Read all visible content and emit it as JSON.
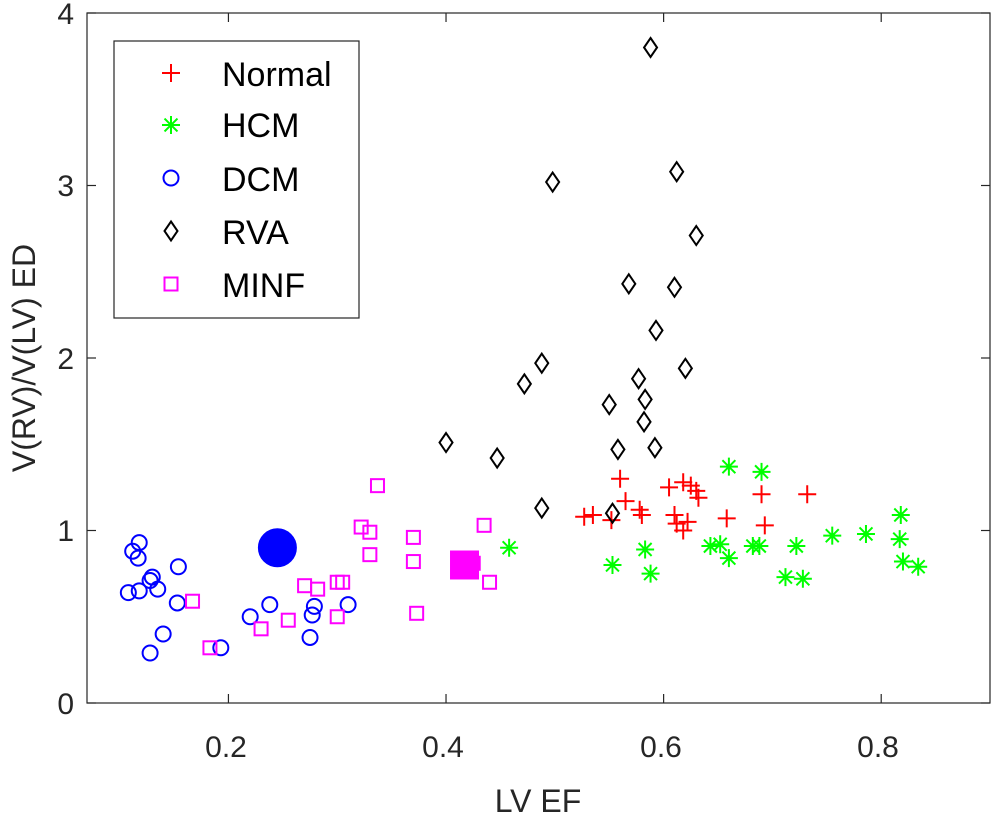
{
  "chart_data": {
    "type": "scatter",
    "title": "",
    "xlabel": "LV EF",
    "ylabel": "V(RV)/V(LV) ED",
    "xlim": [
      0.07,
      0.9
    ],
    "ylim": [
      0,
      4
    ],
    "xticks": [
      0.2,
      0.4,
      0.6,
      0.8
    ],
    "yticks": [
      0,
      1,
      2,
      3,
      4
    ],
    "xtick_labels": [
      "0.2",
      "0.4",
      "0.6",
      "0.8"
    ],
    "ytick_labels": [
      "0",
      "1",
      "2",
      "3",
      "4"
    ],
    "grid": false,
    "legend_position": "top-left",
    "series": [
      {
        "name": "Normal",
        "marker": "plus",
        "color": "#ff0000",
        "points": [
          [
            0.527,
            1.08
          ],
          [
            0.535,
            1.09
          ],
          [
            0.552,
            1.06
          ],
          [
            0.56,
            1.3
          ],
          [
            0.565,
            1.17
          ],
          [
            0.578,
            1.12
          ],
          [
            0.58,
            1.09
          ],
          [
            0.605,
            1.25
          ],
          [
            0.61,
            1.09
          ],
          [
            0.612,
            1.04
          ],
          [
            0.618,
            1.0
          ],
          [
            0.618,
            1.28
          ],
          [
            0.622,
            1.05
          ],
          [
            0.625,
            1.26
          ],
          [
            0.63,
            1.23
          ],
          [
            0.632,
            1.19
          ],
          [
            0.658,
            1.07
          ],
          [
            0.69,
            1.21
          ],
          [
            0.693,
            1.03
          ],
          [
            0.732,
            1.21
          ]
        ]
      },
      {
        "name": "HCM",
        "marker": "asterisk",
        "color": "#00ff00",
        "points": [
          [
            0.458,
            0.9
          ],
          [
            0.553,
            0.8
          ],
          [
            0.583,
            0.89
          ],
          [
            0.588,
            0.75
          ],
          [
            0.66,
            1.37
          ],
          [
            0.66,
            0.84
          ],
          [
            0.643,
            0.91
          ],
          [
            0.652,
            0.92
          ],
          [
            0.682,
            0.91
          ],
          [
            0.688,
            0.91
          ],
          [
            0.69,
            1.34
          ],
          [
            0.712,
            0.73
          ],
          [
            0.722,
            0.91
          ],
          [
            0.728,
            0.72
          ],
          [
            0.755,
            0.97
          ],
          [
            0.786,
            0.98
          ],
          [
            0.817,
            0.95
          ],
          [
            0.818,
            1.09
          ],
          [
            0.82,
            0.82
          ],
          [
            0.834,
            0.79
          ]
        ]
      },
      {
        "name": "DCM",
        "marker": "circle",
        "color": "#0000ff",
        "points": [
          [
            0.108,
            0.64
          ],
          [
            0.112,
            0.88
          ],
          [
            0.117,
            0.84
          ],
          [
            0.118,
            0.93
          ],
          [
            0.118,
            0.65
          ],
          [
            0.128,
            0.71
          ],
          [
            0.13,
            0.73
          ],
          [
            0.135,
            0.66
          ],
          [
            0.128,
            0.29
          ],
          [
            0.14,
            0.4
          ],
          [
            0.153,
            0.58
          ],
          [
            0.154,
            0.79
          ],
          [
            0.193,
            0.32
          ],
          [
            0.22,
            0.5
          ],
          [
            0.238,
            0.57
          ],
          [
            0.275,
            0.38
          ],
          [
            0.277,
            0.51
          ],
          [
            0.279,
            0.56
          ],
          [
            0.31,
            0.57
          ]
        ]
      },
      {
        "name": "RVA",
        "marker": "diamond",
        "color": "#000000",
        "points": [
          [
            0.4,
            1.51
          ],
          [
            0.447,
            1.42
          ],
          [
            0.472,
            1.85
          ],
          [
            0.488,
            1.97
          ],
          [
            0.488,
            1.13
          ],
          [
            0.498,
            3.02
          ],
          [
            0.55,
            1.73
          ],
          [
            0.553,
            1.1
          ],
          [
            0.558,
            1.47
          ],
          [
            0.568,
            2.43
          ],
          [
            0.577,
            1.88
          ],
          [
            0.582,
            1.63
          ],
          [
            0.583,
            1.76
          ],
          [
            0.588,
            3.8
          ],
          [
            0.592,
            1.48
          ],
          [
            0.593,
            2.16
          ],
          [
            0.61,
            2.41
          ],
          [
            0.612,
            3.08
          ],
          [
            0.62,
            1.94
          ],
          [
            0.63,
            2.71
          ]
        ]
      },
      {
        "name": "MINF",
        "marker": "square",
        "color": "#ff00ff",
        "points": [
          [
            0.167,
            0.59
          ],
          [
            0.183,
            0.32
          ],
          [
            0.23,
            0.43
          ],
          [
            0.255,
            0.48
          ],
          [
            0.27,
            0.68
          ],
          [
            0.282,
            0.66
          ],
          [
            0.3,
            0.5
          ],
          [
            0.3,
            0.7
          ],
          [
            0.305,
            0.7
          ],
          [
            0.322,
            1.02
          ],
          [
            0.33,
            0.99
          ],
          [
            0.33,
            0.86
          ],
          [
            0.337,
            1.26
          ],
          [
            0.37,
            0.96
          ],
          [
            0.37,
            0.82
          ],
          [
            0.373,
            0.52
          ],
          [
            0.425,
            0.81
          ],
          [
            0.435,
            1.03
          ],
          [
            0.44,
            0.7
          ]
        ]
      }
    ],
    "highlighted_points": [
      {
        "series": "DCM",
        "marker": "filled-circle",
        "color": "#0000ff",
        "x": 0.245,
        "y": 0.9
      },
      {
        "series": "MINF",
        "marker": "filled-square",
        "color": "#ff00ff",
        "x": 0.417,
        "y": 0.8
      }
    ]
  }
}
